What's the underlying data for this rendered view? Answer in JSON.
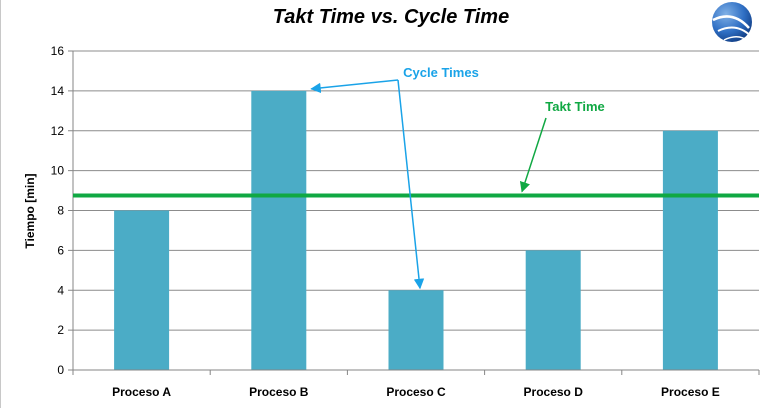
{
  "chart_data": {
    "type": "bar",
    "title": "Takt Time vs. Cycle Time",
    "xlabel": "",
    "ylabel": "Tiempo [min]",
    "categories": [
      "Proceso A",
      "Proceso B",
      "Proceso C",
      "Proceso D",
      "Proceso E"
    ],
    "values": [
      8,
      14,
      4,
      6,
      12
    ],
    "ylim": [
      0,
      16
    ],
    "yticks": [
      0,
      2,
      4,
      6,
      8,
      10,
      12,
      14,
      16
    ],
    "reference_line": {
      "label": "Takt Time",
      "value": 8.75
    },
    "annotations": {
      "cycle_times": "Cycle Times",
      "takt_time": "Takt Time"
    },
    "grid": "horizontal",
    "colors": {
      "bar": "#4bacc6",
      "takt_line": "#10a843",
      "cycle_annotation": "#1aa3e8",
      "grid": "#8c8c8c"
    }
  },
  "logo": {
    "icon": "sphere-logo-icon"
  }
}
